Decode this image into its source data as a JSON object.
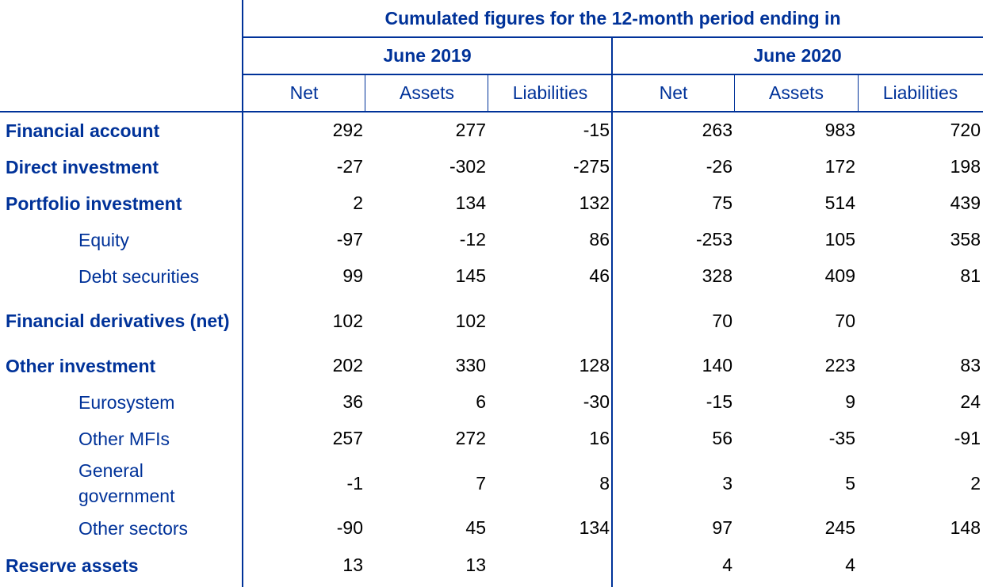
{
  "header": {
    "title": "Cumulated figures for the 12-month period ending in",
    "periods": [
      "June 2019",
      "June 2020"
    ],
    "subcols": [
      "Net",
      "Assets",
      "Liabilities",
      "Net",
      "Assets",
      "Liabilities"
    ]
  },
  "rows": [
    {
      "label": "Financial account",
      "bold": true,
      "values": [
        "292",
        "277",
        "-15",
        "263",
        "983",
        "720"
      ]
    },
    {
      "label": "Direct investment",
      "bold": true,
      "values": [
        "-27",
        "-302",
        "-275",
        "-26",
        "172",
        "198"
      ]
    },
    {
      "label": "Portfolio investment",
      "bold": true,
      "values": [
        "2",
        "134",
        "132",
        "75",
        "514",
        "439"
      ]
    },
    {
      "label": "Equity",
      "bold": false,
      "values": [
        "-97",
        "-12",
        "86",
        "-253",
        "105",
        "358"
      ]
    },
    {
      "label": "Debt securities",
      "bold": false,
      "values": [
        "99",
        "145",
        "46",
        "328",
        "409",
        "81"
      ]
    },
    {
      "label": "Financial derivatives (net)",
      "bold": true,
      "values": [
        "102",
        "102",
        "",
        "70",
        "70",
        ""
      ]
    },
    {
      "label": "Other investment",
      "bold": true,
      "values": [
        "202",
        "330",
        "128",
        "140",
        "223",
        "83"
      ]
    },
    {
      "label": "Eurosystem",
      "bold": false,
      "values": [
        "36",
        "6",
        "-30",
        "-15",
        "9",
        "24"
      ]
    },
    {
      "label": "Other MFIs",
      "bold": false,
      "values": [
        "257",
        "272",
        "16",
        "56",
        "-35",
        "-91"
      ]
    },
    {
      "label": "General government",
      "bold": false,
      "values": [
        "-1",
        "7",
        "8",
        "3",
        "5",
        "2"
      ]
    },
    {
      "label": "Other sectors",
      "bold": false,
      "values": [
        "-90",
        "45",
        "134",
        "97",
        "245",
        "148"
      ]
    },
    {
      "label": "Reserve assets",
      "bold": true,
      "values": [
        "13",
        "13",
        "",
        "4",
        "4",
        ""
      ]
    }
  ]
}
